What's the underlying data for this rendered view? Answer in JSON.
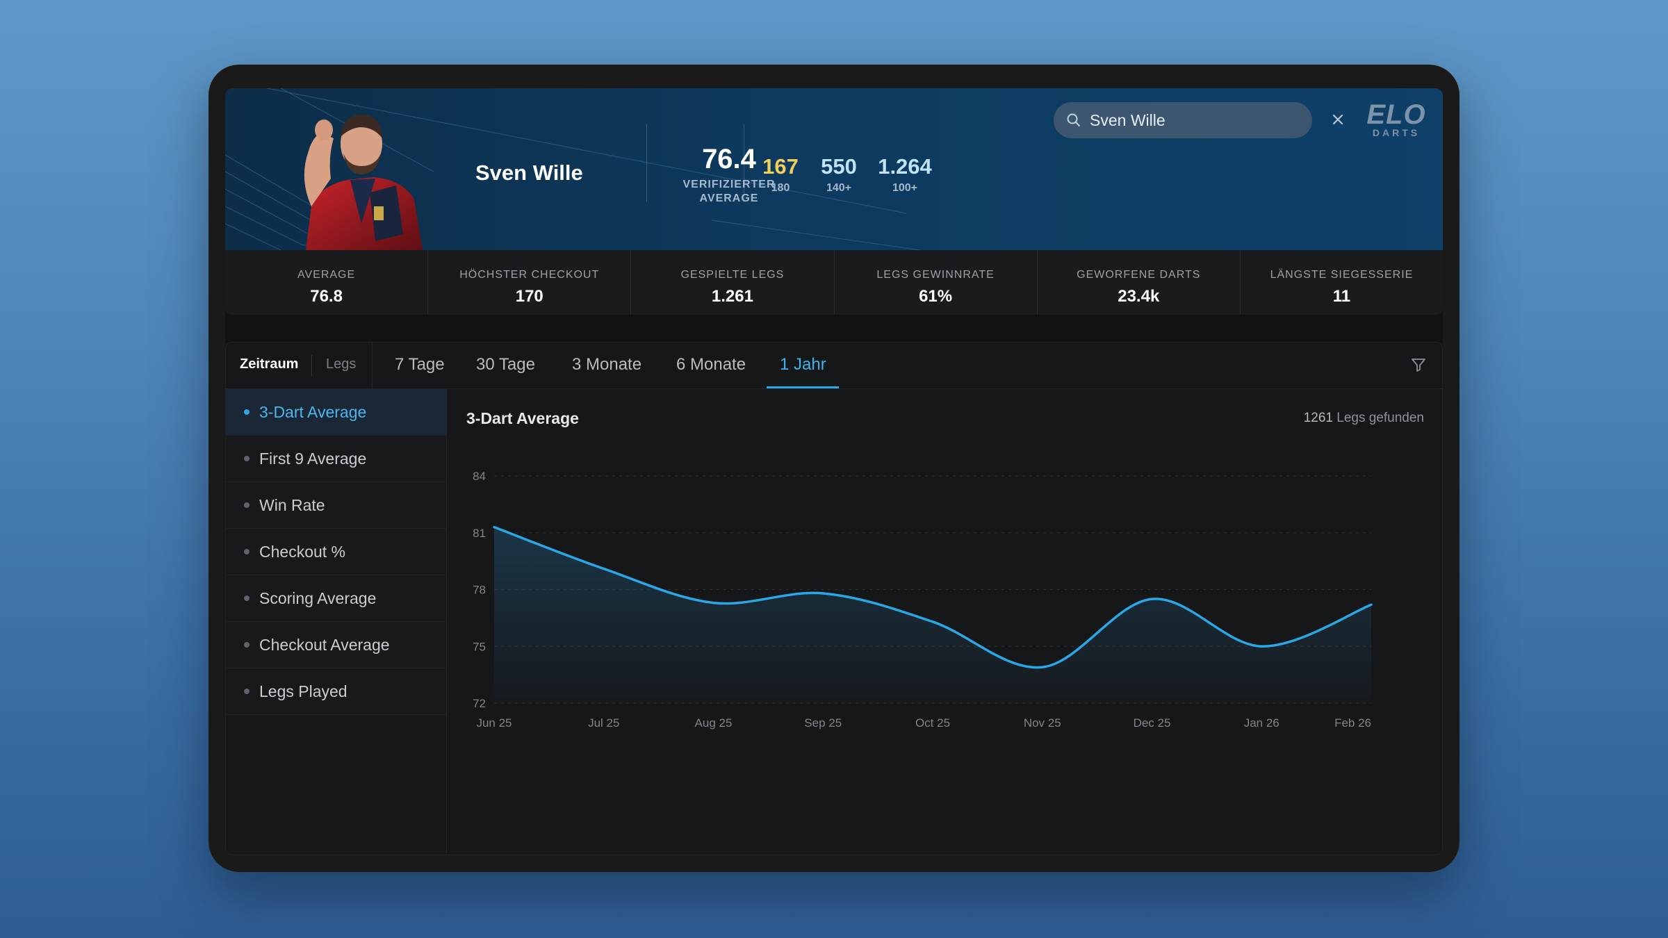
{
  "player": {
    "name": "Sven Wille",
    "verified_average": "76.4",
    "verified_average_label": "VERIFIZIERTER AVERAGE",
    "counts": [
      {
        "value": "167",
        "label": "180",
        "color": "#f2cf5b"
      },
      {
        "value": "550",
        "label": "140+",
        "color": "#bfe3f7"
      },
      {
        "value": "1.264",
        "label": "100+",
        "color": "#bfe3f7"
      }
    ]
  },
  "search": {
    "value": "Sven Wille"
  },
  "logo": {
    "line1": "ELO",
    "line2": "DARTS"
  },
  "stats": [
    {
      "label": "AVERAGE",
      "value": "76.8"
    },
    {
      "label": "HÖCHSTER CHECKOUT",
      "value": "170"
    },
    {
      "label": "GESPIELTE LEGS",
      "value": "1.261"
    },
    {
      "label": "LEGS GEWINNRATE",
      "value": "61%"
    },
    {
      "label": "GEWORFENE DARTS",
      "value": "23.4k"
    },
    {
      "label": "LÄNGSTE SIEGESSERIE",
      "value": "11"
    }
  ],
  "mode_toggle": {
    "active": "Zeitraum",
    "inactive": "Legs"
  },
  "ranges": [
    "7 Tage",
    "30 Tage",
    "3 Monate",
    "6 Monate",
    "1 Jahr"
  ],
  "active_range": "1 Jahr",
  "metrics": [
    "3-Dart Average",
    "First 9 Average",
    "Win Rate",
    "Checkout %",
    "Scoring Average",
    "Checkout Average",
    "Legs Played"
  ],
  "active_metric": "3-Dart Average",
  "chart_header": {
    "title": "3-Dart Average",
    "count": "1261",
    "count_suffix": "Legs gefunden"
  },
  "chart_data": {
    "type": "area",
    "title": "3-Dart Average",
    "x": [
      "Jun 25",
      "Jul 25",
      "Aug 25",
      "Sep 25",
      "Oct 25",
      "Nov 25",
      "Dec 25",
      "Jan 26",
      "Feb 26"
    ],
    "y": [
      81.3,
      79.1,
      77.3,
      77.8,
      76.3,
      73.9,
      77.5,
      75.0,
      77.2
    ],
    "yticks": [
      72,
      75,
      78,
      81,
      84
    ],
    "ylim": [
      72,
      84
    ],
    "grid": true,
    "color": "#2aa7e6"
  }
}
